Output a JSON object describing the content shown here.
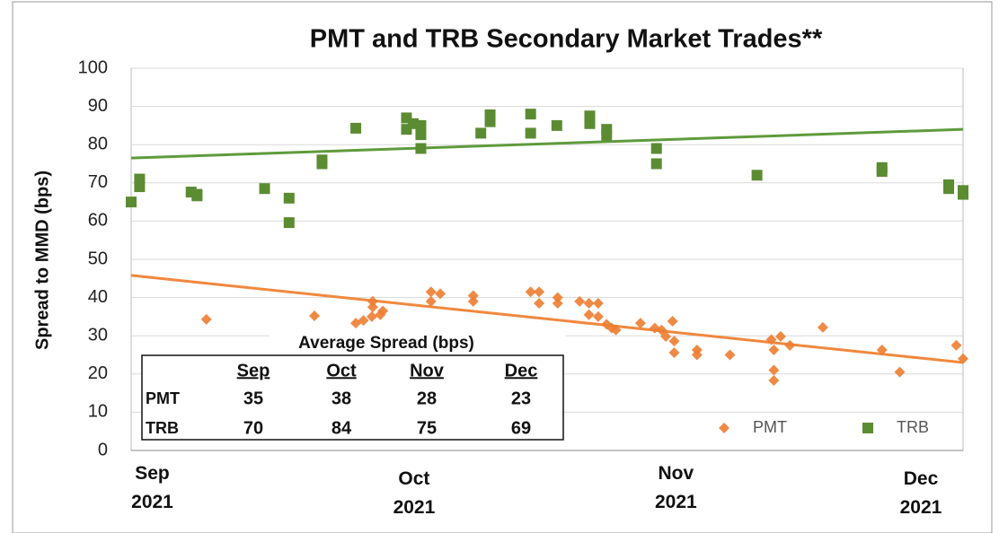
{
  "chart_data": {
    "type": "scatter",
    "title": "PMT and TRB Secondary Market Trades**",
    "ylabel": "Spread to MMD (bps)",
    "xlim": [
      -2.5,
      96
    ],
    "ylim": [
      0,
      100
    ],
    "yticks": [
      0,
      10,
      20,
      30,
      40,
      50,
      60,
      70,
      80,
      90,
      100
    ],
    "xticks": [
      {
        "value": 0,
        "label": "Sep\n2021"
      },
      {
        "value": 31,
        "label": "Oct\n2021"
      },
      {
        "value": 62,
        "label": "Nov\n2021"
      },
      {
        "value": 91,
        "label": "Dec\n2021"
      }
    ],
    "grid": true,
    "legend": "lower right",
    "series": [
      {
        "name": "PMT",
        "color": "#ed7d31",
        "marker": "diamond",
        "x": [
          6.4,
          19.2,
          24.1,
          25,
          26,
          26.1,
          26.1,
          27,
          27.3,
          33,
          33,
          34.1,
          38,
          38,
          44.8,
          45.8,
          45.8,
          48,
          48,
          50.6,
          51.7,
          51.7,
          52.8,
          52.8,
          53.8,
          54.4,
          54.9,
          57.8,
          59.5,
          60.3,
          60.8,
          61.6,
          61.8,
          61.8,
          64.5,
          64.5,
          68.4,
          73.3,
          73.6,
          73.6,
          73.6,
          74.4,
          75.5,
          79.4,
          86.4,
          88.5,
          95.2,
          96
        ],
        "values": [
          34.3,
          35.2,
          33.3,
          34,
          35,
          39,
          37.5,
          35.5,
          36.5,
          39,
          41.5,
          41,
          40.5,
          39,
          41.5,
          41.5,
          38.5,
          40,
          38.5,
          39,
          38.5,
          35.5,
          38.5,
          35,
          33,
          32,
          31.5,
          33.3,
          32,
          31.5,
          29.8,
          33.8,
          28.6,
          25.6,
          26.3,
          25,
          25,
          29,
          26.3,
          21,
          18.3,
          29.8,
          27.5,
          32.2,
          26.3,
          20.5,
          27.5,
          24
        ]
      },
      {
        "name": "TRB",
        "color": "#5b8c32",
        "marker": "square",
        "x": [
          -2.5,
          -1.5,
          -1.5,
          4.6,
          5.3,
          5.3,
          13.3,
          16.2,
          16.2,
          20.1,
          20.1,
          24.1,
          30.1,
          30.1,
          30.9,
          31.8,
          31.8,
          31.8,
          38.9,
          40,
          40,
          44.8,
          44.8,
          47.9,
          51.8,
          51.8,
          53.8,
          53.8,
          59.7,
          59.7,
          71.6,
          86.4,
          86.4,
          94.3,
          94.3,
          96,
          96
        ],
        "values": [
          65,
          69,
          71,
          67.6,
          67,
          66.6,
          68.5,
          66,
          59.6,
          75,
          76,
          84.3,
          87,
          84,
          85.5,
          82.6,
          79,
          85,
          83,
          87.8,
          86,
          88,
          83,
          85,
          87.5,
          85.5,
          84,
          82.5,
          79,
          75,
          72,
          74,
          73,
          69.5,
          68.5,
          68,
          67
        ]
      }
    ],
    "trendlines": [
      {
        "color": "#f0883e",
        "x": [
          -2.5,
          96
        ],
        "values": [
          45.8,
          23
        ]
      },
      {
        "color": "#5f9b3c",
        "x": [
          -2.5,
          96
        ],
        "values": [
          76.5,
          84
        ]
      }
    ]
  },
  "table": {
    "title": "Average Spread (bps)",
    "columns": [
      "Sep",
      "Oct",
      "Nov",
      "Dec"
    ],
    "rows": [
      {
        "label": "PMT",
        "values": [
          35,
          38,
          28,
          23
        ]
      },
      {
        "label": "TRB",
        "values": [
          70,
          84,
          75,
          69
        ]
      }
    ]
  }
}
